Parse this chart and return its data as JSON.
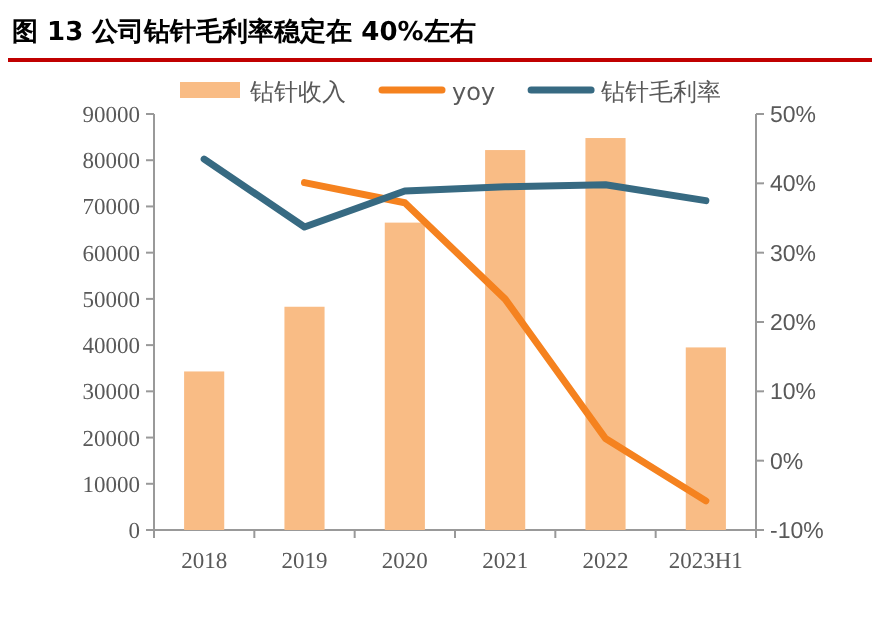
{
  "chart_data": {
    "type": "bar",
    "title": "图 13 公司钻针毛利率稳定在 40%左右",
    "categories": [
      "2018",
      "2019",
      "2020",
      "2021",
      "2022",
      "2023H1"
    ],
    "series": [
      {
        "name": "钻针收入",
        "color": "#f9bc85",
        "values": [
          34300,
          48300,
          66500,
          82200,
          84800,
          39500
        ]
      },
      {
        "name": "yoy",
        "type": "line",
        "axis": "y2",
        "color": "#f5821f",
        "values": [
          null,
          40.1,
          37.2,
          23.3,
          3.2,
          -5.8
        ]
      },
      {
        "name": "钻针毛利率",
        "type": "line",
        "axis": "y2",
        "color": "#376a82",
        "values": [
          43.5,
          33.7,
          38.9,
          39.5,
          39.8,
          37.5
        ]
      }
    ],
    "ylim": [
      0,
      90000
    ],
    "yticks": [
      0,
      10000,
      20000,
      30000,
      40000,
      50000,
      60000,
      70000,
      80000,
      90000
    ],
    "y2lim": [
      -10,
      50
    ],
    "y2ticks": [
      {
        "value": -10,
        "label": "-10%"
      },
      {
        "value": 0,
        "label": "0%"
      },
      {
        "value": 10,
        "label": "10%"
      },
      {
        "value": 20,
        "label": "20%"
      },
      {
        "value": 30,
        "label": "30%"
      },
      {
        "value": 40,
        "label": "40%"
      },
      {
        "value": 50,
        "label": "50%"
      }
    ],
    "grid": false,
    "legend": "top",
    "marker": "none",
    "line_style": "solid"
  }
}
